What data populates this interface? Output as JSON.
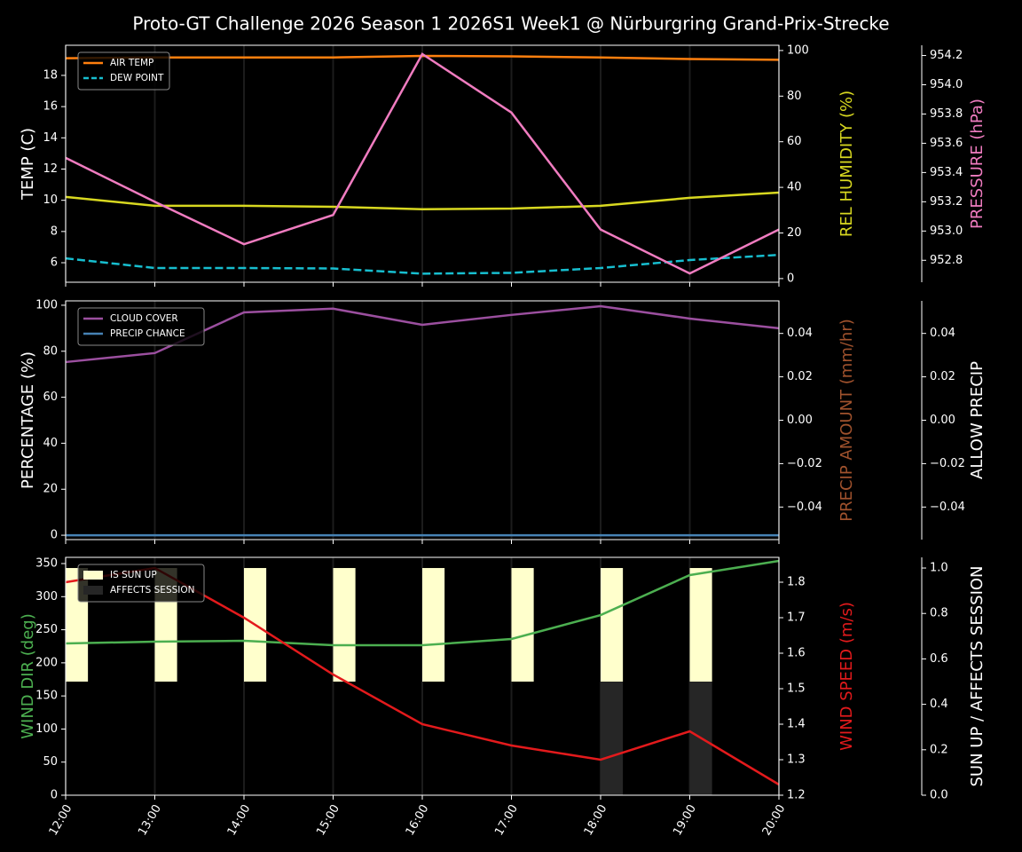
{
  "title": "Proto-GT Challenge  2026 Season 1 2026S1 Week1 @ Nürburgring Grand-Prix-Strecke",
  "chart_data": [
    {
      "type": "line",
      "legend": "upper left",
      "ylabel": "TEMP (C)",
      "ylabel_color": "#ffffff",
      "ylim": [
        4.75,
        19.93
      ],
      "yticks": [
        6,
        8,
        10,
        12,
        14,
        16,
        18
      ],
      "y2label": "REL HUMIDITY (%)",
      "y2label_color": "#d8d820",
      "y2lim": [
        -1.6,
        102.3
      ],
      "y2ticks": [
        0,
        20,
        40,
        60,
        80,
        100
      ],
      "y3label": "PRESSURE (hPa)",
      "y3label_color": "#f07cc0",
      "y3lim": [
        952.65,
        954.27
      ],
      "y3ticks": [
        952.8,
        {
          "value": 953.0,
          "label": "953.0"
        },
        953.2,
        953.4,
        953.6,
        953.8,
        {
          "value": 954.0,
          "label": "954.0"
        },
        954.2
      ],
      "series": [
        {
          "name": "AIR TEMP",
          "color": "#ff7f0e",
          "axis": "y",
          "in_legend": true,
          "dashed": false,
          "values": [
            19.1,
            19.15,
            19.15,
            19.15,
            19.25,
            19.22,
            19.15,
            19.05,
            19.0
          ]
        },
        {
          "name": "DEW POINT",
          "color": "#17becf",
          "axis": "y",
          "in_legend": true,
          "dashed": true,
          "values": [
            6.28,
            5.66,
            5.66,
            5.63,
            5.3,
            5.35,
            5.66,
            6.17,
            6.5
          ]
        },
        {
          "color": "#d8d820",
          "axis": "y2",
          "in_legend": false,
          "dashed": false,
          "values": [
            35.8,
            31.9,
            31.9,
            31.5,
            30.4,
            30.7,
            31.9,
            35.4,
            37.7
          ]
        },
        {
          "color": "#f07cc0",
          "axis": "y3",
          "in_legend": false,
          "dashed": false,
          "values": [
            953.5,
            953.2,
            952.91,
            953.11,
            954.21,
            953.81,
            953.01,
            952.71,
            953.01
          ]
        }
      ]
    },
    {
      "type": "line",
      "legend": "upper left",
      "ylabel": "PERCENTAGE (%)",
      "ylabel_color": "#ffffff",
      "ylim": [
        -1.9,
        101.9
      ],
      "yticks": [
        0,
        20,
        40,
        60,
        80,
        100
      ],
      "y2label": "PRECIP AMOUNT (mm/hr)",
      "y2label_color": "#a0522d",
      "y2lim": [
        -0.055,
        0.055
      ],
      "y2ticks": [
        {
          "value": -0.04,
          "label": "−0.04"
        },
        {
          "value": -0.02,
          "label": "−0.02"
        },
        {
          "value": 0,
          "label": "0.00"
        },
        0.02,
        0.04
      ],
      "y3label": "ALLOW PRECIP",
      "y3label_color": "#ffffff",
      "y3lim": [
        -0.055,
        0.055
      ],
      "y3ticks": [
        {
          "value": -0.04,
          "label": "−0.04"
        },
        {
          "value": -0.02,
          "label": "−0.02"
        },
        {
          "value": 0,
          "label": "0.00"
        },
        0.02,
        0.04
      ],
      "series": [
        {
          "name": "CLOUD COVER",
          "color": "#9b4f9f",
          "axis": "y",
          "in_legend": true,
          "dashed": false,
          "values": [
            75.3,
            79.2,
            96.9,
            98.5,
            91.5,
            95.8,
            99.6,
            94.2,
            90.0
          ]
        },
        {
          "name": "PRECIP CHANCE",
          "color": "#4682b4",
          "axis": "y",
          "in_legend": true,
          "dashed": false,
          "values": [
            0,
            0,
            0,
            0,
            0,
            0,
            0,
            0,
            0
          ]
        }
      ]
    },
    {
      "type": "line",
      "legend": "upper left",
      "categories": [
        "12:00",
        "13:00",
        "14:00",
        "15:00",
        "16:00",
        "17:00",
        "18:00",
        "19:00",
        "20:00"
      ],
      "ylabel": "WIND DIR (deg)",
      "ylabel_color": "#4caf50",
      "ylim": [
        0,
        359.4
      ],
      "yticks": [
        0,
        50,
        100,
        150,
        200,
        250,
        300,
        350
      ],
      "y2label": "WIND SPEED (m/s)",
      "y2label_color": "#e31a1c",
      "y2lim": [
        1.2,
        1.87
      ],
      "y2ticks": [
        1.2,
        1.3,
        1.4,
        1.5,
        1.6,
        1.7,
        1.8
      ],
      "y3label": "SUN UP / AFFECTS SESSION",
      "y3label_color": "#ffffff",
      "y3lim": [
        0,
        1.047
      ],
      "y3ticks": [
        {
          "value": 0,
          "label": "0.0"
        },
        0.2,
        0.4,
        0.6,
        0.8,
        {
          "value": 1,
          "label": "1.0"
        }
      ],
      "series": [
        {
          "name": "IS SUN UP",
          "type": "bar",
          "color": "#ffffcc",
          "axis": "y3",
          "in_legend": true,
          "bottom": 0.5,
          "values": [
            0.5,
            0.5,
            0.5,
            0.5,
            0.5,
            0.5,
            0.5,
            0.5,
            0
          ]
        },
        {
          "name": "AFFECTS SESSION",
          "type": "bar",
          "color": "#262626",
          "axis": "y3",
          "in_legend": true,
          "bottom": 0,
          "values": [
            0,
            0,
            0,
            0,
            0,
            0,
            0.5,
            0.5,
            0
          ]
        },
        {
          "color": "#4caf50",
          "axis": "y",
          "in_legend": false,
          "dashed": false,
          "values": [
            229.3,
            232,
            233.3,
            226.6,
            226.6,
            236,
            272.2,
            332.6,
            354
          ]
        },
        {
          "color": "#e31a1c",
          "axis": "y2",
          "in_legend": false,
          "dashed": false,
          "values": [
            1.8,
            1.84,
            1.7,
            1.54,
            1.4,
            1.34,
            1.3,
            1.38,
            1.23
          ]
        }
      ]
    }
  ]
}
